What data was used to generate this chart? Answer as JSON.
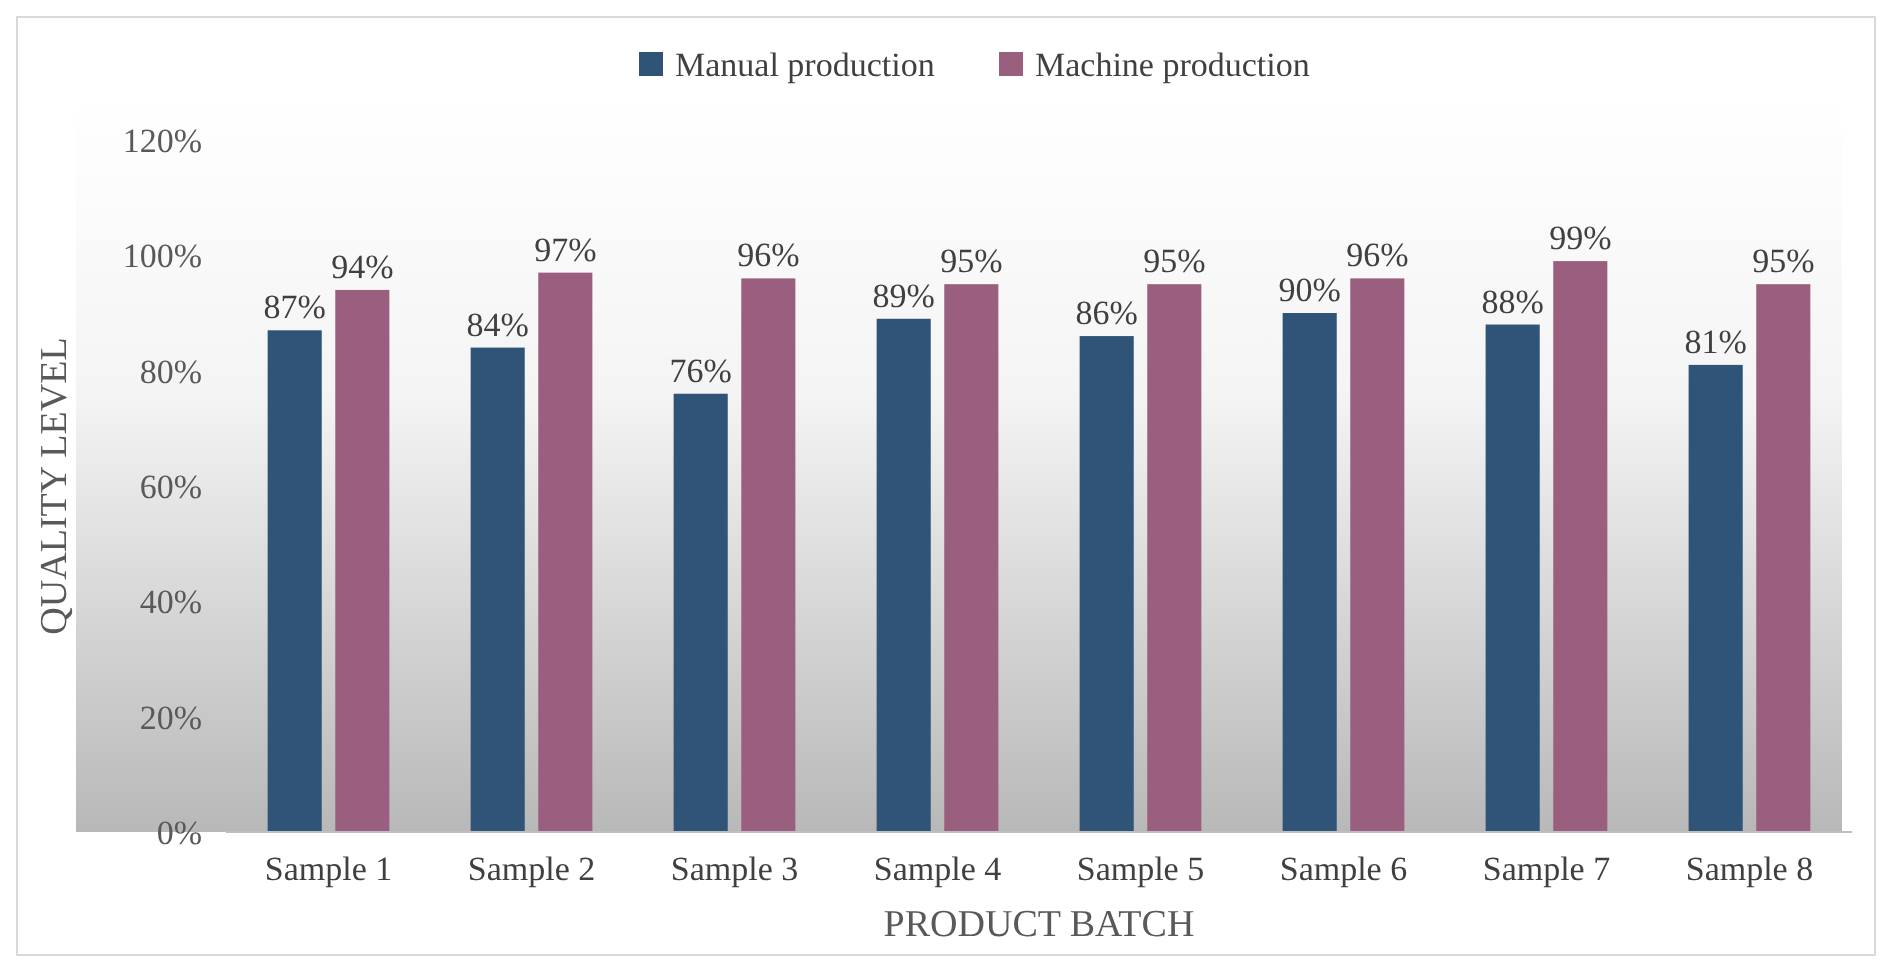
{
  "chart_data": {
    "type": "bar",
    "xlabel": "PRODUCT BATCH",
    "ylabel": "QUALITY LEVEL",
    "categories": [
      "Sample 1",
      "Sample 2",
      "Sample 3",
      "Sample 4",
      "Sample 5",
      "Sample 6",
      "Sample 7",
      "Sample 8"
    ],
    "series": [
      {
        "name": "Manual production",
        "color": "#2f5478",
        "values": [
          87,
          84,
          76,
          89,
          86,
          90,
          88,
          81
        ],
        "value_labels": [
          "87%",
          "84%",
          "76%",
          "89%",
          "86%",
          "90%",
          "88%",
          "81%"
        ]
      },
      {
        "name": "Machine production",
        "color": "#9a5f7e",
        "values": [
          94,
          97,
          96,
          95,
          95,
          96,
          99,
          95
        ],
        "value_labels": [
          "94%",
          "97%",
          "96%",
          "95%",
          "95%",
          "96%",
          "99%",
          "95%"
        ]
      }
    ],
    "ylim": [
      0,
      120
    ],
    "yticks": [
      {
        "value": 0,
        "label": "0%"
      },
      {
        "value": 20,
        "label": "20%"
      },
      {
        "value": 40,
        "label": "40%"
      },
      {
        "value": 60,
        "label": "60%"
      },
      {
        "value": 80,
        "label": "80%"
      },
      {
        "value": 100,
        "label": "100%"
      },
      {
        "value": 120,
        "label": "120%"
      }
    ],
    "grid": false,
    "legend": "top"
  }
}
